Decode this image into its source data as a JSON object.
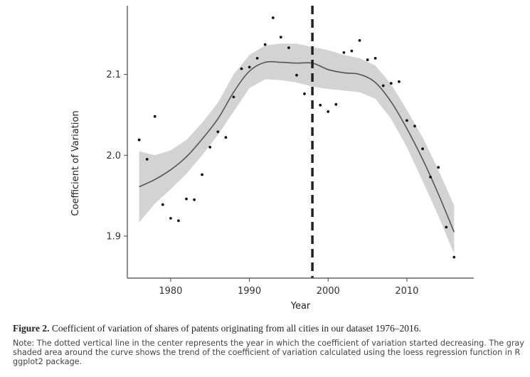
{
  "chart_data": {
    "type": "scatter",
    "xlabel": "Year",
    "ylabel": "Coefficient of Variation",
    "xlim": [
      1974.5,
      2018.5
    ],
    "ylim": [
      1.848,
      2.185
    ],
    "xticks": [
      1980,
      1990,
      2000,
      2010
    ],
    "yticks": [
      1.9,
      2.0,
      2.1
    ],
    "xtick_labels": [
      "1980",
      "1990",
      "2000",
      "2010"
    ],
    "ytick_labels": [
      "1.9",
      "2.0",
      "2.1"
    ],
    "grid": false,
    "points": [
      {
        "x": 1976,
        "y": 2.019
      },
      {
        "x": 1977,
        "y": 1.995
      },
      {
        "x": 1978,
        "y": 2.048
      },
      {
        "x": 1979,
        "y": 1.939
      },
      {
        "x": 1980,
        "y": 1.922
      },
      {
        "x": 1981,
        "y": 1.919
      },
      {
        "x": 1982,
        "y": 1.946
      },
      {
        "x": 1983,
        "y": 1.945
      },
      {
        "x": 1984,
        "y": 1.976
      },
      {
        "x": 1985,
        "y": 2.01
      },
      {
        "x": 1986,
        "y": 2.029
      },
      {
        "x": 1987,
        "y": 2.022
      },
      {
        "x": 1988,
        "y": 2.072
      },
      {
        "x": 1989,
        "y": 2.107
      },
      {
        "x": 1990,
        "y": 2.109
      },
      {
        "x": 1991,
        "y": 2.12
      },
      {
        "x": 1992,
        "y": 2.137
      },
      {
        "x": 1993,
        "y": 2.17
      },
      {
        "x": 1994,
        "y": 2.146
      },
      {
        "x": 1995,
        "y": 2.133
      },
      {
        "x": 1996,
        "y": 2.099
      },
      {
        "x": 1997,
        "y": 2.076
      },
      {
        "x": 1999,
        "y": 2.062
      },
      {
        "x": 2000,
        "y": 2.054
      },
      {
        "x": 2001,
        "y": 2.063
      },
      {
        "x": 2002,
        "y": 2.127
      },
      {
        "x": 2003,
        "y": 2.129
      },
      {
        "x": 2004,
        "y": 2.142
      },
      {
        "x": 2005,
        "y": 2.118
      },
      {
        "x": 2006,
        "y": 2.12
      },
      {
        "x": 2007,
        "y": 2.086
      },
      {
        "x": 2008,
        "y": 2.089
      },
      {
        "x": 2009,
        "y": 2.091
      },
      {
        "x": 2010,
        "y": 2.043
      },
      {
        "x": 2011,
        "y": 2.036
      },
      {
        "x": 2012,
        "y": 2.008
      },
      {
        "x": 2013,
        "y": 1.973
      },
      {
        "x": 2014,
        "y": 1.985
      },
      {
        "x": 2015,
        "y": 1.911
      },
      {
        "x": 2016,
        "y": 1.874
      }
    ],
    "loess_fit": {
      "x": [
        1976,
        1978,
        1980,
        1982,
        1984,
        1986,
        1988,
        1990,
        1992,
        1994,
        1996,
        1998,
        2000,
        2002,
        2004,
        2006,
        2008,
        2010,
        2012,
        2014,
        2016
      ],
      "y": [
        1.961,
        1.97,
        1.982,
        1.998,
        2.02,
        2.045,
        2.078,
        2.104,
        2.115,
        2.115,
        2.114,
        2.114,
        2.106,
        2.102,
        2.1,
        2.09,
        2.066,
        2.033,
        1.995,
        1.952,
        1.905
      ],
      "lower": [
        1.917,
        1.94,
        1.958,
        1.977,
        2.0,
        2.025,
        2.054,
        2.083,
        2.094,
        2.093,
        2.09,
        2.085,
        2.082,
        2.08,
        2.078,
        2.07,
        2.045,
        2.01,
        1.968,
        1.925,
        1.878
      ],
      "upper": [
        2.005,
        2.0,
        2.006,
        2.019,
        2.04,
        2.065,
        2.1,
        2.124,
        2.136,
        2.138,
        2.138,
        2.134,
        2.13,
        2.124,
        2.12,
        2.111,
        2.088,
        2.056,
        2.022,
        1.982,
        1.938
      ]
    },
    "vline_x": 1998,
    "colors": {
      "points": "#111111",
      "fit_line": "#555555",
      "band": "#d3d3d3",
      "vline": "#222222",
      "axes": "#444444"
    }
  },
  "caption": {
    "label": "Figure 2.",
    "text": "Coefficient of variation of shares of patents originating from all cities in our dataset 1976–2016.",
    "note": "Note: The dotted vertical line in the center represents the year in which the coefficient of variation started decreasing. The gray shaded area around the curve shows the trend of the coefficient of variation calculated using the loess regression function in R ggplot2 package."
  }
}
